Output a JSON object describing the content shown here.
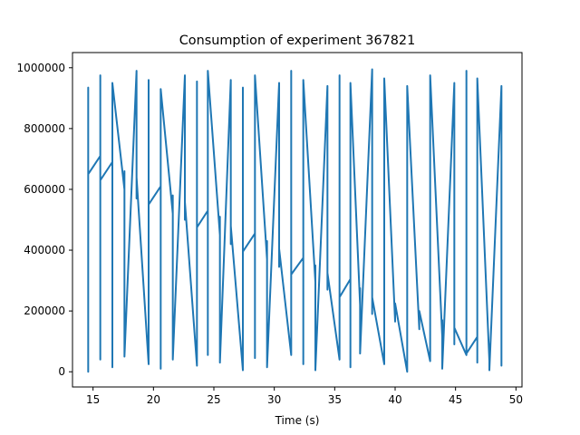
{
  "chart_data": {
    "type": "line",
    "title": "Consumption of experiment 367821",
    "xlabel": "Time (s)",
    "ylabel": "",
    "xlim": [
      13.3,
      50.5
    ],
    "ylim": [
      -50000,
      1050000
    ],
    "grid": false,
    "x_ticks": [
      15,
      20,
      25,
      30,
      35,
      40,
      45,
      50
    ],
    "x_tick_labels": [
      "15",
      "20",
      "25",
      "30",
      "35",
      "40",
      "45",
      "50"
    ],
    "y_ticks": [
      0,
      200000,
      400000,
      600000,
      800000,
      1000000
    ],
    "y_tick_labels": [
      "0",
      "200000",
      "400000",
      "600000",
      "800000",
      "1000000"
    ],
    "color": "#1f77b4",
    "series": [
      {
        "x": [
          14.6,
          14.6,
          14.6,
          14.6,
          14.6,
          15.6,
          15.6,
          15.6,
          15.6,
          16.6,
          16.6,
          16.6,
          17.6,
          17.6,
          17.6,
          18.6,
          18.6,
          18.6,
          19.6,
          19.6,
          19.6,
          20.6,
          20.6,
          20.6,
          21.6,
          21.6,
          21.6,
          22.6,
          22.6,
          22.6,
          23.6,
          23.6,
          23.6,
          24.5,
          24.5,
          24.5,
          25.5,
          25.5,
          25.5,
          26.4,
          26.4,
          26.4,
          27.4,
          27.4,
          27.4,
          28.4,
          28.4,
          28.4,
          29.4,
          29.4,
          29.4,
          30.4,
          30.4,
          30.4,
          31.4,
          31.4,
          31.4,
          32.4,
          32.4,
          32.4,
          33.4,
          33.4,
          33.4,
          34.4,
          34.4,
          34.4,
          35.4,
          35.4,
          35.4,
          36.3,
          36.3,
          36.3,
          37.1,
          37.1,
          37.1,
          38.1,
          38.1,
          38.1,
          39.1,
          39.1,
          40.0,
          40.0,
          41.0,
          41.0,
          42.0,
          42.0,
          42.9,
          42.9,
          43.9,
          43.9,
          43.9,
          44.9,
          44.9,
          44.9,
          45.9,
          45.9,
          45.9,
          46.8,
          46.8,
          46.8,
          47.8,
          47.8,
          47.8,
          48.8,
          48.8,
          48.8
        ],
        "y": [
          740000,
          935000,
          0,
          935000,
          650000,
          710000,
          40000,
          975000,
          630000,
          690000,
          15000,
          950000,
          600000,
          660000,
          50000,
          990000,
          570000,
          640000,
          25000,
          960000,
          550000,
          610000,
          10000,
          930000,
          520000,
          580000,
          40000,
          975000,
          500000,
          560000,
          20000,
          955000,
          475000,
          530000,
          55000,
          990000,
          450000,
          510000,
          30000,
          960000,
          420000,
          480000,
          5000,
          935000,
          395000,
          455000,
          45000,
          975000,
          370000,
          430000,
          15000,
          950000,
          345000,
          405000,
          55000,
          990000,
          320000,
          375000,
          25000,
          960000,
          295000,
          350000,
          5000,
          940000,
          270000,
          325000,
          40000,
          975000,
          245000,
          305000,
          15000,
          950000,
          220000,
          275000,
          60000,
          995000,
          190000,
          245000,
          25000,
          965000,
          165000,
          225000,
          0,
          940000,
          140000,
          200000,
          35000,
          975000,
          115000,
          170000,
          10000,
          950000,
          90000,
          145000,
          55000,
          990000,
          60000,
          115000,
          30000,
          965000,
          35000,
          90000,
          5000,
          940000,
          20000,
          60000
        ]
      }
    ]
  }
}
